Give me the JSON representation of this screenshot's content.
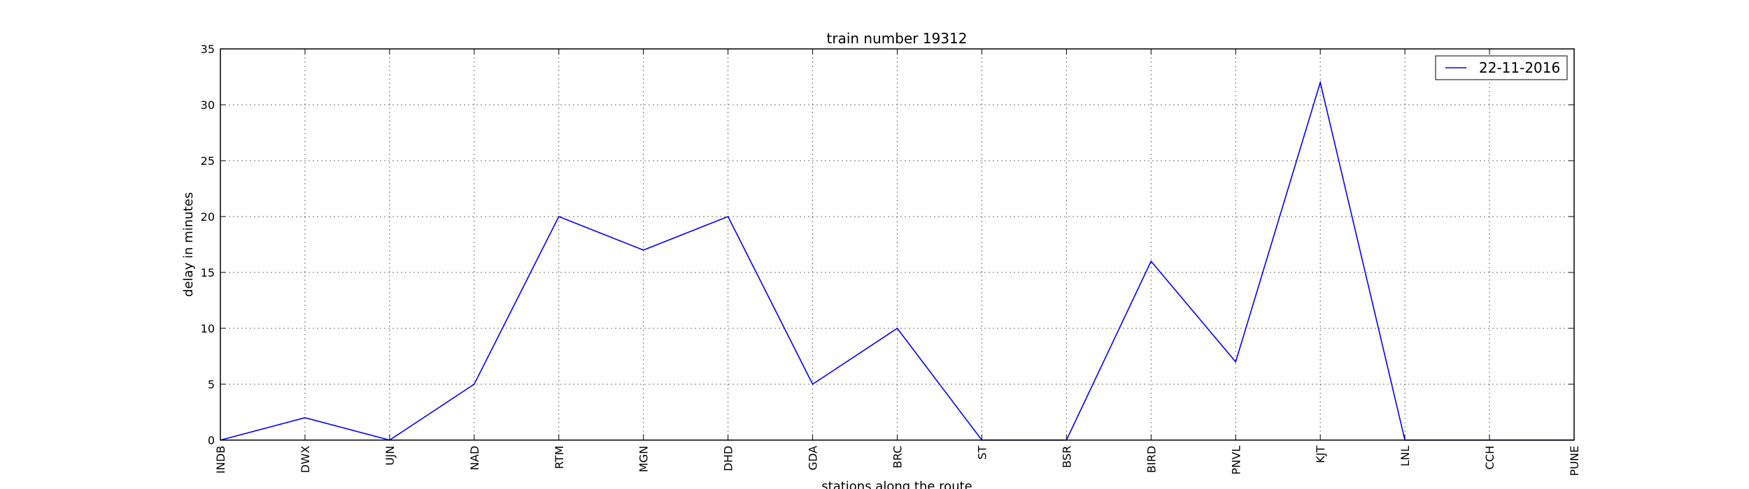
{
  "chart_data": {
    "type": "line",
    "title": "train number 19312",
    "xlabel": "stations along the route",
    "ylabel": "delay in minutes",
    "categories": [
      "INDB",
      "DWX",
      "UJN",
      "NAD",
      "RTM",
      "MGN",
      "DHD",
      "GDA",
      "BRC",
      "ST",
      "BSR",
      "BIRD",
      "PNVL",
      "KJT",
      "LNL",
      "CCH",
      "PUNE"
    ],
    "series": [
      {
        "name": "22-11-2016",
        "color": "#0000ff",
        "values": [
          0,
          2,
          0,
          5,
          20,
          17,
          20,
          5,
          10,
          0,
          0,
          16,
          7,
          32,
          0,
          0,
          0
        ]
      }
    ],
    "ylim": [
      0,
      35
    ],
    "yticks": [
      0,
      5,
      10,
      15,
      20,
      25,
      30,
      35
    ],
    "grid": true,
    "legend_position": "top-right"
  }
}
